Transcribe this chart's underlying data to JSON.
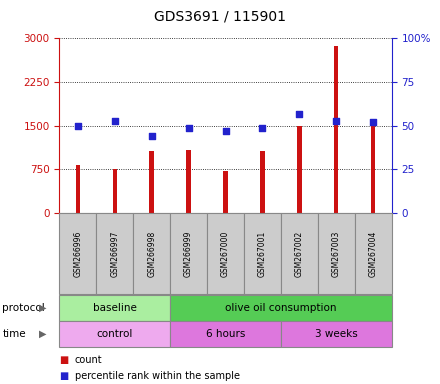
{
  "title": "GDS3691 / 115901",
  "samples": [
    "GSM266996",
    "GSM266997",
    "GSM266998",
    "GSM266999",
    "GSM267000",
    "GSM267001",
    "GSM267002",
    "GSM267003",
    "GSM267004"
  ],
  "counts": [
    830,
    760,
    1060,
    1090,
    720,
    1060,
    1500,
    2870,
    1620
  ],
  "percentile_ranks": [
    50,
    53,
    44,
    49,
    47,
    49,
    57,
    53,
    52
  ],
  "count_ylim": [
    0,
    3000
  ],
  "count_yticks": [
    0,
    750,
    1500,
    2250,
    3000
  ],
  "count_ytick_labels": [
    "0",
    "750",
    "1500",
    "2250",
    "3000"
  ],
  "pct_ylim": [
    0,
    100
  ],
  "pct_yticks": [
    0,
    25,
    50,
    75,
    100
  ],
  "pct_ytick_labels": [
    "0",
    "25",
    "50",
    "75",
    "100%"
  ],
  "bar_color": "#cc1111",
  "dot_color": "#2222cc",
  "left_ylabel_color": "#cc1111",
  "right_ylabel_color": "#2222cc",
  "protocol_groups": [
    {
      "label": "baseline",
      "start": 0,
      "end": 3,
      "color": "#aaeea0"
    },
    {
      "label": "olive oil consumption",
      "start": 3,
      "end": 9,
      "color": "#55cc55"
    }
  ],
  "time_groups": [
    {
      "label": "control",
      "start": 0,
      "end": 3,
      "color": "#eeaaee"
    },
    {
      "label": "6 hours",
      "start": 3,
      "end": 6,
      "color": "#dd77dd"
    },
    {
      "label": "3 weeks",
      "start": 6,
      "end": 9,
      "color": "#dd77dd"
    }
  ],
  "sample_box_color": "#cccccc",
  "sample_box_edge": "#888888",
  "legend_items": [
    {
      "color": "#cc1111",
      "label": "count"
    },
    {
      "color": "#2222cc",
      "label": "percentile rank within the sample"
    }
  ]
}
